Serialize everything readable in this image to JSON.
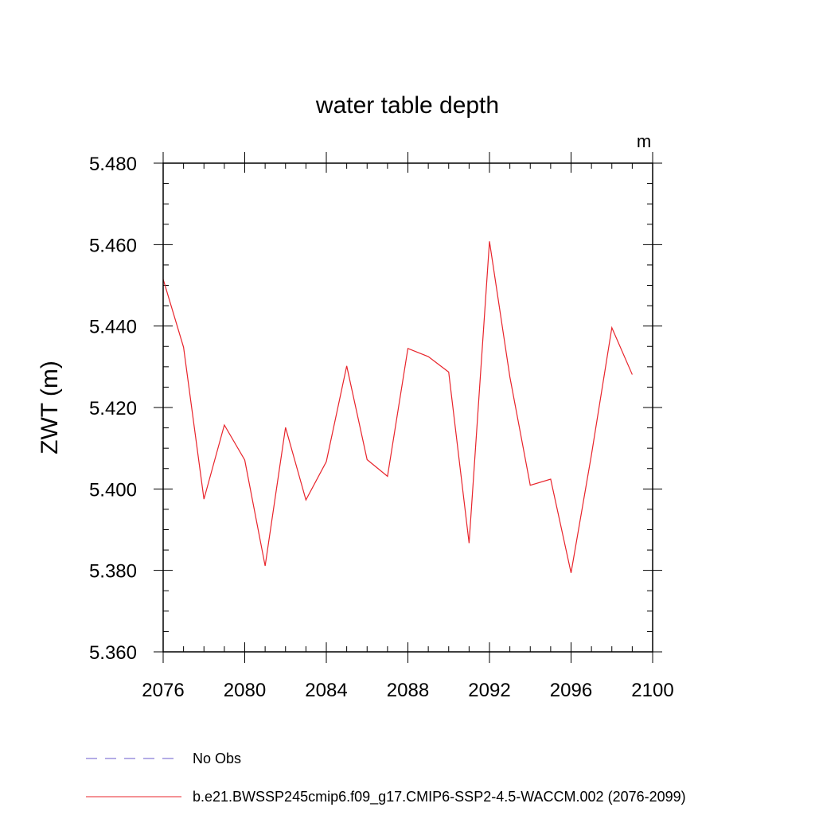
{
  "chart_data": {
    "type": "line",
    "title": "water table depth",
    "units": "m",
    "xlabel": "",
    "ylabel": "ZWT  (m)",
    "xlim": [
      2076,
      2100
    ],
    "ylim": [
      5.36,
      5.48
    ],
    "xticks": [
      "2076",
      "2080",
      "2084",
      "2088",
      "2092",
      "2096",
      "2100"
    ],
    "yticks": [
      "5.360",
      "5.380",
      "5.400",
      "5.420",
      "5.440",
      "5.460",
      "5.480"
    ],
    "series": [
      {
        "name": "b.e21.BWSSP245cmip6.f09_g17.CMIP6-SSP2-4.5-WACCM.002 (2076-2099)",
        "color": "#e8242b",
        "x": [
          2076,
          2077,
          2078,
          2079,
          2080,
          2081,
          2082,
          2083,
          2084,
          2085,
          2086,
          2087,
          2088,
          2089,
          2090,
          2091,
          2092,
          2093,
          2094,
          2095,
          2096,
          2097,
          2098,
          2099
        ],
        "values": [
          5.4515,
          5.4348,
          5.3975,
          5.4157,
          5.4071,
          5.3811,
          5.4151,
          5.3973,
          5.4067,
          5.4302,
          5.4072,
          5.4031,
          5.4345,
          5.4325,
          5.4287,
          5.3867,
          5.4608,
          5.4275,
          5.4009,
          5.4024,
          5.3794,
          5.4084,
          5.4396,
          5.4281
        ]
      }
    ],
    "legend": {
      "position": "bottom",
      "entries": [
        {
          "label": "No Obs",
          "color": "#6a5acd",
          "style": "dashed"
        },
        {
          "label": "b.e21.BWSSP245cmip6.f09_g17.CMIP6-SSP2-4.5-WACCM.002 (2076-2099)",
          "color": "#e8242b",
          "style": "solid"
        }
      ]
    }
  }
}
